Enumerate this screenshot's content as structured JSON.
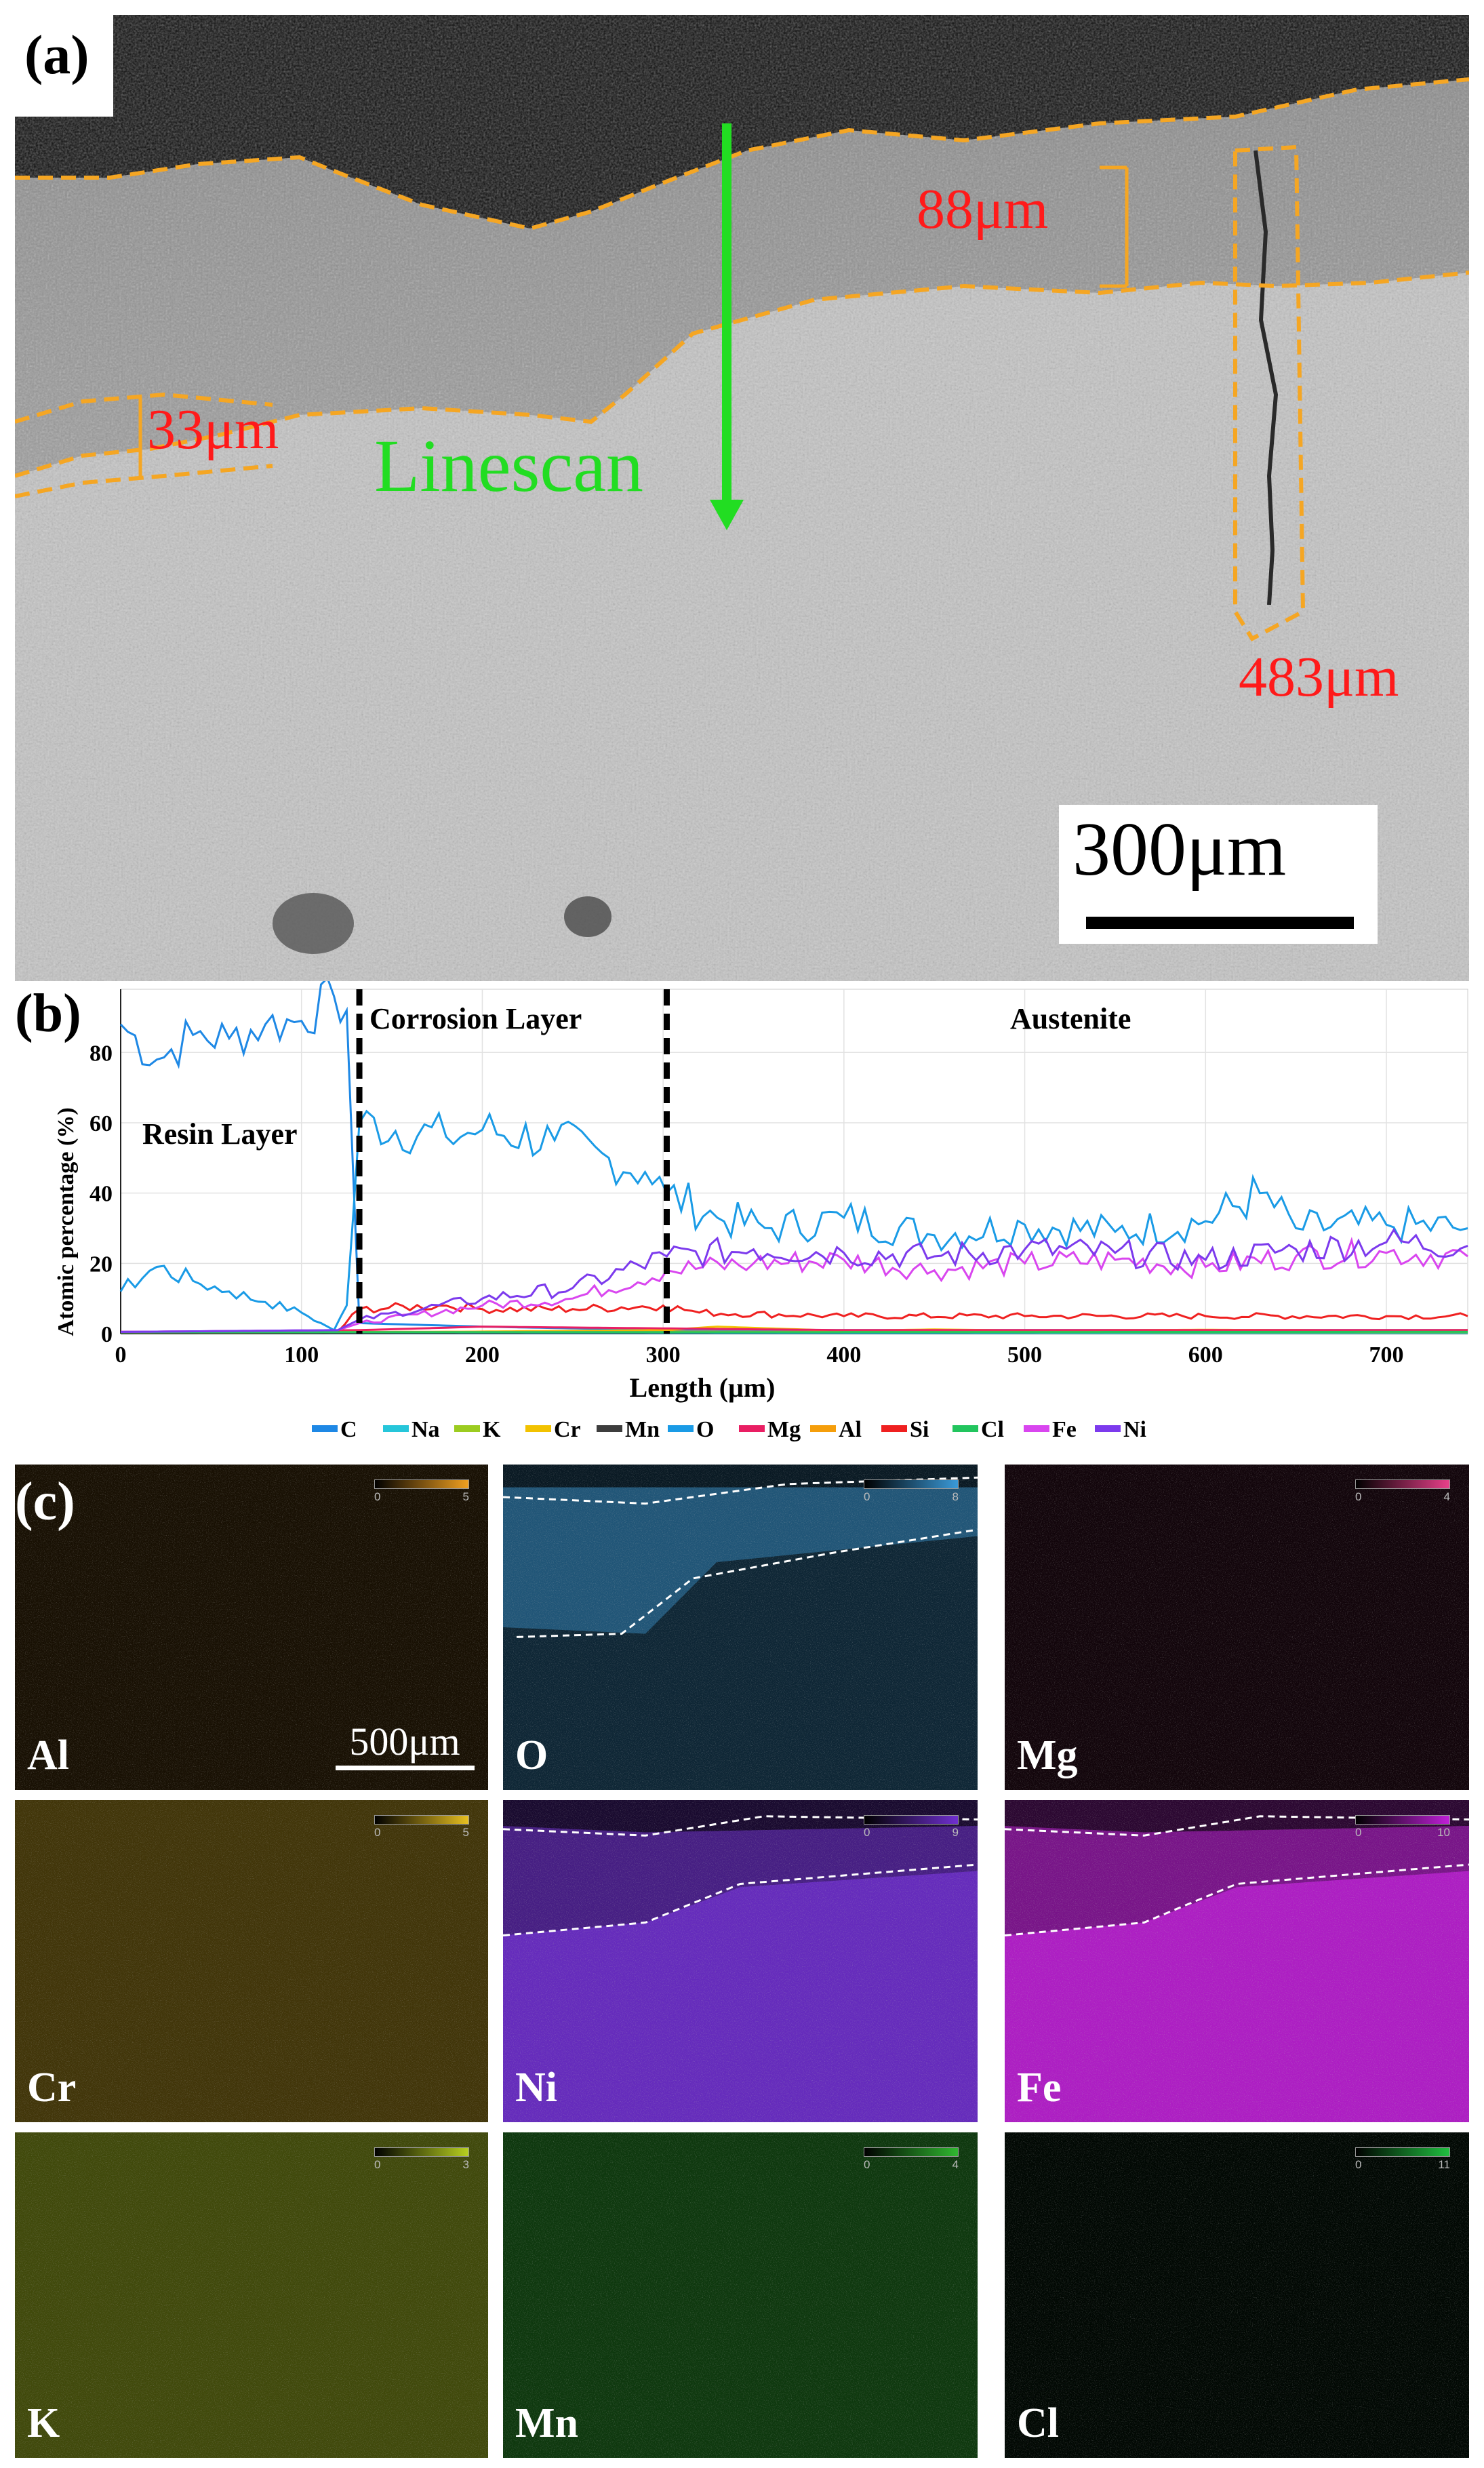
{
  "panel_a": {
    "label": "(a)",
    "annotations": {
      "thickness_upper": "88μm",
      "thickness_left": "33μm",
      "crack_depth": "483μm",
      "linescan": "Linescan"
    },
    "scale_bar": "300μm",
    "colors": {
      "boundary": "#f5a623",
      "text": "#ff1a1a",
      "linescan": "#22dd22"
    }
  },
  "panel_b": {
    "label": "(b)",
    "regions": [
      "Resin Layer",
      "Corrosion Layer",
      "Austenite"
    ]
  },
  "chart_data": {
    "type": "line",
    "title": "",
    "xlabel": "Length (μm)",
    "ylabel": "Atomic percentage (%)",
    "xlim": [
      0,
      745
    ],
    "ylim": [
      0,
      98
    ],
    "xticks": [
      0,
      100,
      200,
      300,
      400,
      500,
      600,
      700
    ],
    "yticks": [
      0,
      20,
      40,
      60,
      80
    ],
    "region_boundaries_x": [
      132,
      302
    ],
    "series": [
      {
        "name": "C",
        "color": "#1e88e5",
        "points": [
          [
            0,
            88
          ],
          [
            20,
            78
          ],
          [
            40,
            85
          ],
          [
            60,
            84
          ],
          [
            80,
            88
          ],
          [
            100,
            89
          ],
          [
            118,
            96
          ],
          [
            125,
            92
          ],
          [
            132,
            3
          ],
          [
            200,
            2
          ],
          [
            300,
            1
          ],
          [
            400,
            1
          ],
          [
            500,
            1
          ],
          [
            600,
            1
          ],
          [
            745,
            1
          ]
        ]
      },
      {
        "name": "Na",
        "color": "#26c6da",
        "points": [
          [
            0,
            0.2
          ],
          [
            745,
            0.2
          ]
        ]
      },
      {
        "name": "K",
        "color": "#9ccc20",
        "points": [
          [
            0,
            0.3
          ],
          [
            200,
            0.4
          ],
          [
            400,
            0.5
          ],
          [
            600,
            0.4
          ],
          [
            745,
            0.4
          ]
        ]
      },
      {
        "name": "Cr",
        "color": "#f2c200",
        "points": [
          [
            0,
            0.2
          ],
          [
            132,
            0.3
          ],
          [
            200,
            0.6
          ],
          [
            300,
            1
          ],
          [
            330,
            2
          ],
          [
            400,
            0.8
          ],
          [
            450,
            1.2
          ],
          [
            500,
            0.9
          ],
          [
            600,
            1.1
          ],
          [
            700,
            0.9
          ],
          [
            745,
            1
          ]
        ]
      },
      {
        "name": "Mn",
        "color": "#3d3d3d",
        "points": [
          [
            0,
            0.2
          ],
          [
            745,
            0.6
          ]
        ]
      },
      {
        "name": "O",
        "color": "#1a9be6",
        "points": [
          [
            0,
            12
          ],
          [
            20,
            19
          ],
          [
            40,
            15
          ],
          [
            60,
            12
          ],
          [
            80,
            9
          ],
          [
            100,
            6
          ],
          [
            118,
            1
          ],
          [
            125,
            8
          ],
          [
            132,
            60
          ],
          [
            180,
            56
          ],
          [
            200,
            58
          ],
          [
            240,
            55
          ],
          [
            270,
            50
          ],
          [
            290,
            46
          ],
          [
            302,
            40
          ],
          [
            330,
            33
          ],
          [
            360,
            30
          ],
          [
            400,
            33
          ],
          [
            450,
            28
          ],
          [
            500,
            31
          ],
          [
            550,
            29
          ],
          [
            600,
            32
          ],
          [
            630,
            40
          ],
          [
            650,
            30
          ],
          [
            700,
            31
          ],
          [
            745,
            30
          ]
        ]
      },
      {
        "name": "Mg",
        "color": "#e91e63",
        "points": [
          [
            0,
            0.5
          ],
          [
            132,
            1
          ],
          [
            200,
            2
          ],
          [
            300,
            1.5
          ],
          [
            400,
            1
          ],
          [
            500,
            1
          ],
          [
            600,
            1
          ],
          [
            745,
            1
          ]
        ]
      },
      {
        "name": "Al",
        "color": "#f59e0b",
        "points": [
          [
            0,
            0.4
          ],
          [
            132,
            0.5
          ],
          [
            300,
            0.6
          ],
          [
            400,
            0.5
          ],
          [
            600,
            0.5
          ],
          [
            745,
            0.5
          ]
        ]
      },
      {
        "name": "Si",
        "color": "#ef2020",
        "points": [
          [
            0,
            0.5
          ],
          [
            120,
            0.5
          ],
          [
            132,
            7
          ],
          [
            180,
            8
          ],
          [
            200,
            7
          ],
          [
            250,
            7
          ],
          [
            300,
            8
          ],
          [
            320,
            6
          ],
          [
            400,
            5
          ],
          [
            500,
            5
          ],
          [
            600,
            5
          ],
          [
            700,
            5
          ],
          [
            745,
            5
          ]
        ]
      },
      {
        "name": "Cl",
        "color": "#22c55e",
        "points": [
          [
            0,
            0.4
          ],
          [
            745,
            0.5
          ]
        ]
      },
      {
        "name": "Fe",
        "color": "#d946ef",
        "points": [
          [
            0,
            0.5
          ],
          [
            120,
            1
          ],
          [
            132,
            3
          ],
          [
            200,
            8
          ],
          [
            250,
            10
          ],
          [
            302,
            18
          ],
          [
            350,
            20
          ],
          [
            400,
            21
          ],
          [
            450,
            18
          ],
          [
            500,
            20
          ],
          [
            550,
            21
          ],
          [
            600,
            19
          ],
          [
            650,
            22
          ],
          [
            700,
            23
          ],
          [
            745,
            22
          ]
        ]
      },
      {
        "name": "Ni",
        "color": "#7c3aed",
        "points": [
          [
            0,
            0.5
          ],
          [
            120,
            1
          ],
          [
            132,
            4
          ],
          [
            200,
            10
          ],
          [
            250,
            13
          ],
          [
            302,
            22
          ],
          [
            350,
            24
          ],
          [
            400,
            23
          ],
          [
            450,
            22
          ],
          [
            500,
            24
          ],
          [
            550,
            23
          ],
          [
            600,
            21
          ],
          [
            650,
            24
          ],
          [
            700,
            26
          ],
          [
            745,
            25
          ]
        ]
      }
    ]
  },
  "panel_c": {
    "label": "(c)",
    "scale_bar": "500μm",
    "maps": [
      {
        "element": "Al",
        "max": "5",
        "color": "#f0a020"
      },
      {
        "element": "O",
        "max": "8",
        "color": "#3a9ad9"
      },
      {
        "element": "Mg",
        "max": "4",
        "color": "#e8408a"
      },
      {
        "element": "Cr",
        "max": "5",
        "color": "#e8c020"
      },
      {
        "element": "Ni",
        "max": "9",
        "color": "#7030d0"
      },
      {
        "element": "Fe",
        "max": "10",
        "color": "#c020d8"
      },
      {
        "element": "K",
        "max": "3",
        "color": "#b8d020"
      },
      {
        "element": "Mn",
        "max": "4",
        "color": "#30b830"
      },
      {
        "element": "Cl",
        "max": "11",
        "color": "#20c040"
      }
    ],
    "colorbar_min": "0"
  }
}
